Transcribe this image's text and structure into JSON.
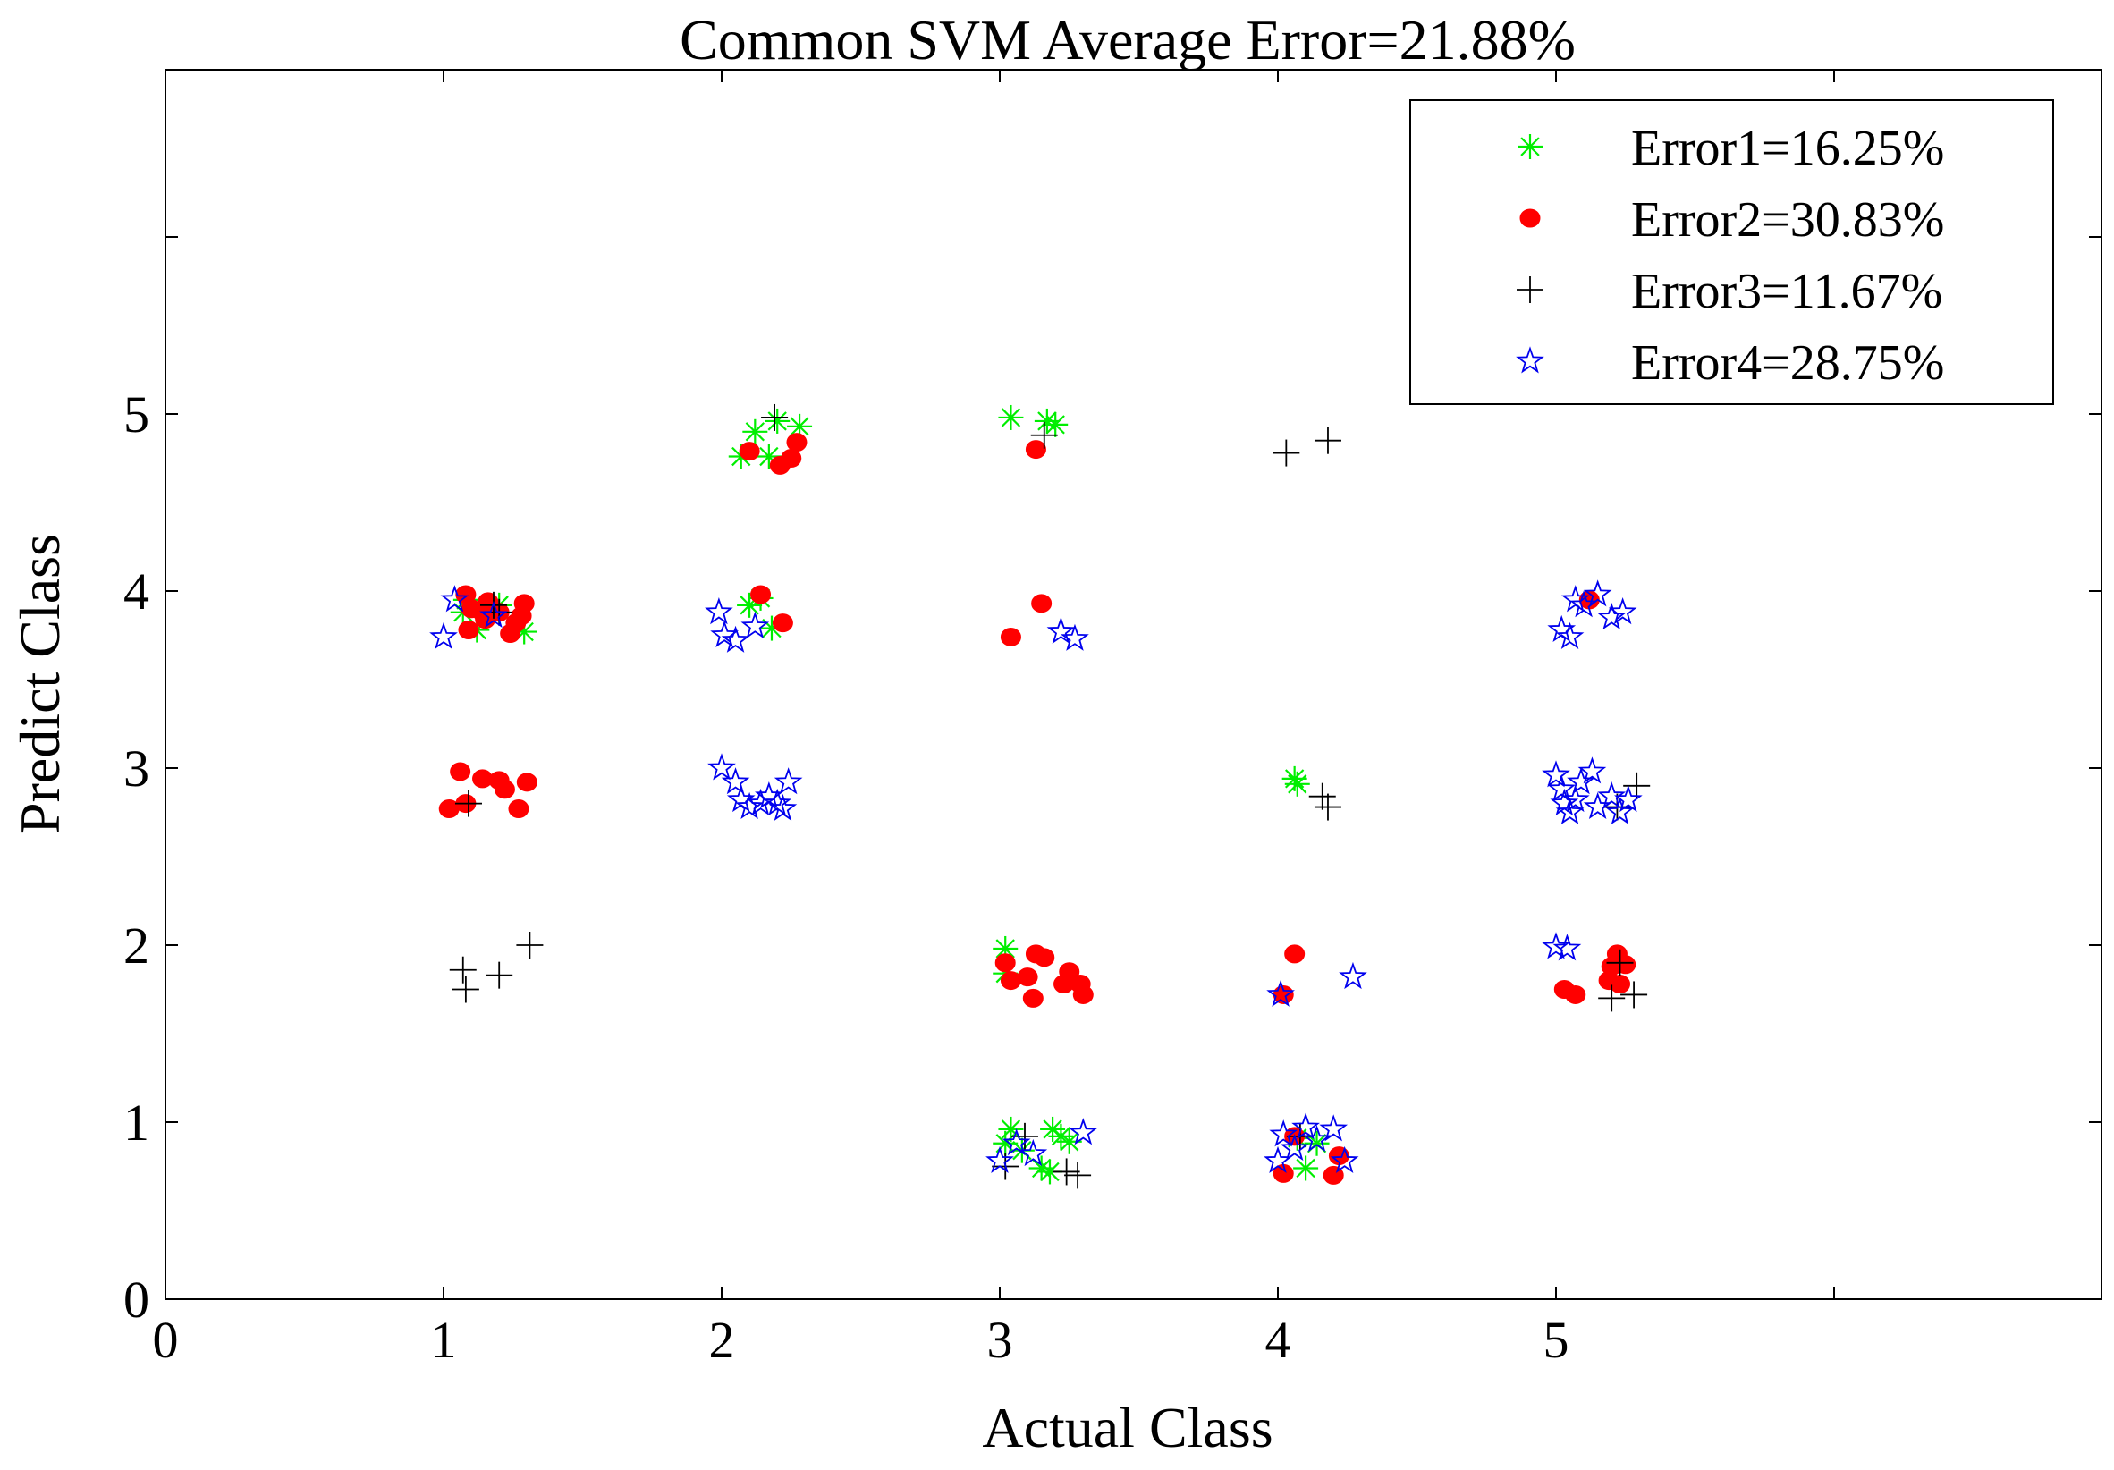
{
  "chart_data": {
    "type": "scatter",
    "title": "Common SVM Average Error=21.88%",
    "xlabel": "Actual Class",
    "ylabel": "Predict Class",
    "xlim": [
      0,
      7
    ],
    "ylim": [
      0,
      7
    ],
    "xticks": [
      0,
      1,
      2,
      3,
      4,
      5,
      6
    ],
    "xtick_labels": [
      "0",
      "1",
      "2",
      "3",
      "4",
      "5",
      ""
    ],
    "yticks": [
      0,
      1,
      2,
      3,
      4,
      5,
      6
    ],
    "ytick_labels": [
      "0",
      "1",
      "2",
      "3",
      "4",
      "5",
      ""
    ],
    "grid": false,
    "legend_position": "top-right",
    "series": [
      {
        "name": "Error1=16.25%",
        "marker": "asterisk",
        "color": "#00ee00",
        "points": [
          [
            1.07,
            3.88
          ],
          [
            1.12,
            3.78
          ],
          [
            1.2,
            3.92
          ],
          [
            1.29,
            3.77
          ],
          [
            1.08,
            3.95
          ],
          [
            2.07,
            4.76
          ],
          [
            2.12,
            4.9
          ],
          [
            2.17,
            4.76
          ],
          [
            2.2,
            4.96
          ],
          [
            2.28,
            4.93
          ],
          [
            2.1,
            3.92
          ],
          [
            2.14,
            3.96
          ],
          [
            2.18,
            3.79
          ],
          [
            3.04,
            4.98
          ],
          [
            3.17,
            4.96
          ],
          [
            3.2,
            4.94
          ],
          [
            4.06,
            2.94
          ],
          [
            4.07,
            2.91
          ],
          [
            3.02,
            1.98
          ],
          [
            3.02,
            1.84
          ],
          [
            3.02,
            0.88
          ],
          [
            3.04,
            0.96
          ],
          [
            3.08,
            0.84
          ],
          [
            3.15,
            0.74
          ],
          [
            3.18,
            0.72
          ],
          [
            3.19,
            0.96
          ],
          [
            3.22,
            0.92
          ],
          [
            3.25,
            0.89
          ],
          [
            4.07,
            0.91
          ],
          [
            4.1,
            0.74
          ],
          [
            4.14,
            0.88
          ]
        ]
      },
      {
        "name": "Error2=30.83%",
        "marker": "filled-circle",
        "color": "#ff0000",
        "points": [
          [
            1.08,
            3.98
          ],
          [
            1.09,
            3.78
          ],
          [
            1.1,
            3.9
          ],
          [
            1.14,
            3.88
          ],
          [
            1.15,
            3.84
          ],
          [
            1.16,
            3.94
          ],
          [
            1.2,
            3.88
          ],
          [
            1.24,
            3.76
          ],
          [
            1.26,
            3.82
          ],
          [
            1.28,
            3.86
          ],
          [
            1.29,
            3.93
          ],
          [
            1.02,
            2.77
          ],
          [
            1.06,
            2.98
          ],
          [
            1.14,
            2.94
          ],
          [
            1.2,
            2.93
          ],
          [
            1.22,
            2.88
          ],
          [
            1.27,
            2.77
          ],
          [
            1.3,
            2.92
          ],
          [
            1.08,
            2.8
          ],
          [
            2.1,
            4.79
          ],
          [
            2.21,
            4.71
          ],
          [
            2.25,
            4.75
          ],
          [
            2.27,
            4.84
          ],
          [
            2.14,
            3.98
          ],
          [
            2.22,
            3.82
          ],
          [
            3.13,
            4.8
          ],
          [
            3.04,
            3.74
          ],
          [
            3.15,
            3.93
          ],
          [
            3.02,
            1.9
          ],
          [
            3.04,
            1.8
          ],
          [
            3.1,
            1.82
          ],
          [
            3.12,
            1.7
          ],
          [
            3.13,
            1.95
          ],
          [
            3.16,
            1.93
          ],
          [
            3.23,
            1.78
          ],
          [
            3.25,
            1.85
          ],
          [
            3.29,
            1.78
          ],
          [
            3.3,
            1.72
          ],
          [
            4.02,
            1.72
          ],
          [
            4.06,
            1.95
          ],
          [
            4.02,
            0.71
          ],
          [
            4.06,
            0.92
          ],
          [
            4.2,
            0.7
          ],
          [
            4.22,
            0.81
          ],
          [
            5.12,
            3.95
          ],
          [
            5.03,
            1.75
          ],
          [
            5.07,
            1.72
          ],
          [
            5.19,
            1.8
          ],
          [
            5.2,
            1.88
          ],
          [
            5.22,
            1.95
          ],
          [
            5.23,
            1.78
          ],
          [
            5.25,
            1.89
          ]
        ]
      },
      {
        "name": "Error3=11.67%",
        "marker": "plus",
        "color": "#000000",
        "points": [
          [
            1.18,
            3.92
          ],
          [
            1.2,
            3.88
          ],
          [
            1.09,
            2.8
          ],
          [
            1.07,
            1.86
          ],
          [
            1.08,
            1.75
          ],
          [
            1.2,
            1.83
          ],
          [
            1.31,
            2.0
          ],
          [
            2.19,
            4.98
          ],
          [
            3.16,
            4.88
          ],
          [
            4.03,
            4.78
          ],
          [
            4.18,
            4.85
          ],
          [
            4.16,
            2.84
          ],
          [
            4.18,
            2.78
          ],
          [
            5.22,
            2.78
          ],
          [
            5.29,
            2.9
          ],
          [
            5.2,
            1.7
          ],
          [
            5.23,
            1.9
          ],
          [
            5.28,
            1.72
          ],
          [
            3.02,
            0.75
          ],
          [
            3.09,
            0.92
          ],
          [
            3.24,
            0.72
          ],
          [
            3.28,
            0.7
          ],
          [
            4.08,
            0.92
          ]
        ]
      },
      {
        "name": "Error4=28.75%",
        "marker": "open-star",
        "color": "#0000ee",
        "points": [
          [
            1.0,
            3.74
          ],
          [
            1.04,
            3.95
          ],
          [
            1.18,
            3.86
          ],
          [
            1.99,
            3.88
          ],
          [
            2.01,
            3.75
          ],
          [
            2.05,
            3.72
          ],
          [
            2.12,
            3.8
          ],
          [
            2.0,
            3.0
          ],
          [
            2.05,
            2.92
          ],
          [
            2.07,
            2.82
          ],
          [
            2.1,
            2.78
          ],
          [
            2.14,
            2.8
          ],
          [
            2.17,
            2.84
          ],
          [
            2.2,
            2.8
          ],
          [
            2.24,
            2.92
          ],
          [
            2.22,
            2.77
          ],
          [
            3.22,
            3.77
          ],
          [
            3.27,
            3.73
          ],
          [
            5.02,
            3.78
          ],
          [
            5.05,
            3.74
          ],
          [
            5.07,
            3.95
          ],
          [
            5.1,
            3.92
          ],
          [
            5.15,
            3.98
          ],
          [
            5.2,
            3.85
          ],
          [
            5.24,
            3.88
          ],
          [
            5.0,
            2.96
          ],
          [
            5.02,
            2.88
          ],
          [
            5.03,
            2.8
          ],
          [
            5.05,
            2.75
          ],
          [
            5.07,
            2.82
          ],
          [
            5.09,
            2.92
          ],
          [
            5.13,
            2.98
          ],
          [
            5.15,
            2.78
          ],
          [
            5.2,
            2.84
          ],
          [
            5.23,
            2.75
          ],
          [
            5.26,
            2.82
          ],
          [
            5.0,
            1.99
          ],
          [
            5.04,
            1.98
          ],
          [
            4.01,
            1.72
          ],
          [
            4.27,
            1.82
          ],
          [
            3.0,
            0.78
          ],
          [
            3.06,
            0.88
          ],
          [
            3.12,
            0.82
          ],
          [
            3.3,
            0.94
          ],
          [
            4.0,
            0.78
          ],
          [
            4.02,
            0.93
          ],
          [
            4.06,
            0.85
          ],
          [
            4.1,
            0.97
          ],
          [
            4.14,
            0.9
          ],
          [
            4.2,
            0.96
          ],
          [
            4.24,
            0.78
          ]
        ]
      }
    ]
  }
}
